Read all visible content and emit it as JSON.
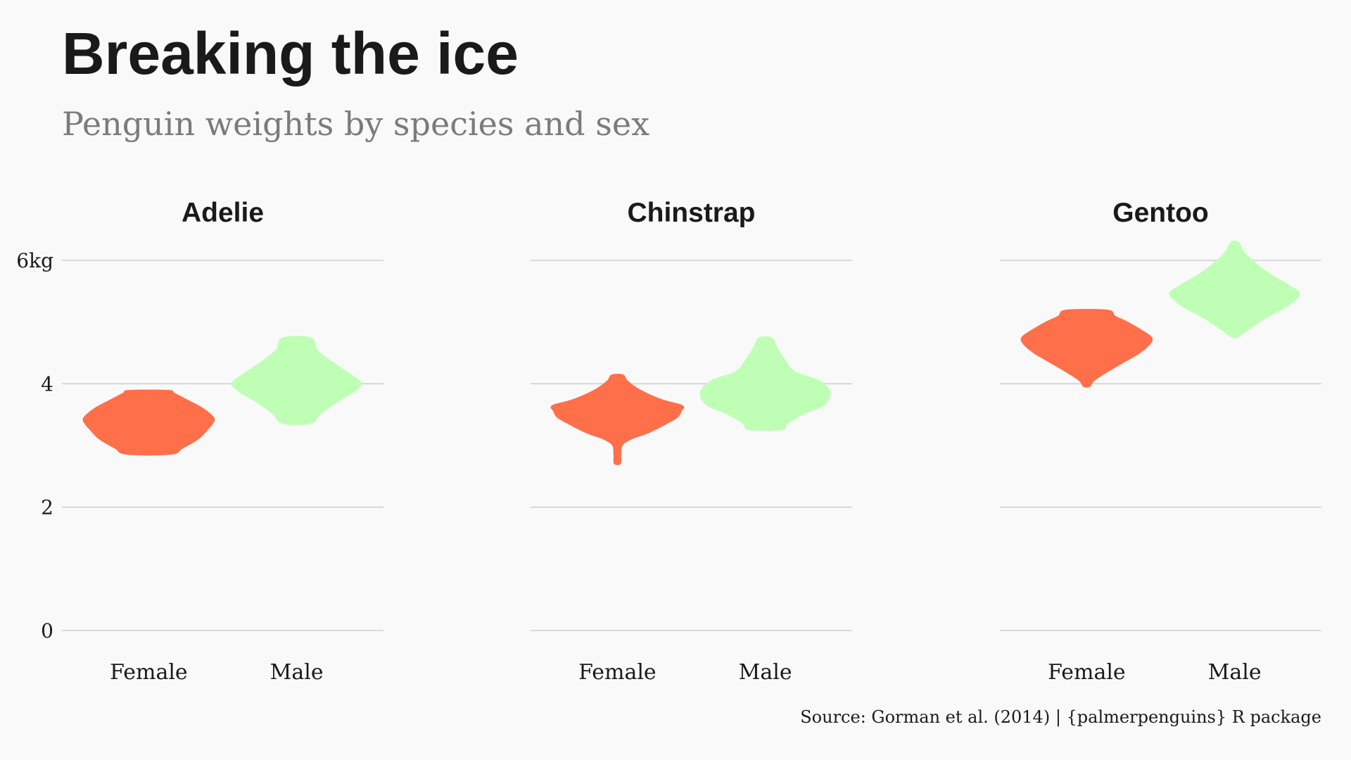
{
  "title": "Breaking the ice",
  "subtitle": "Penguin weights by species and sex",
  "caption": "Source: Gorman et al. (2014) | {palmerpenguins} R package",
  "colors": {
    "Female": "#ff6f4a",
    "Male": "#bfffb5",
    "grid": "#cfcfcf",
    "background": "#f9f9f9"
  },
  "chart_data": {
    "type": "violin",
    "title": "Breaking the ice",
    "subtitle": "Penguin weights by species and sex",
    "xlabel": "",
    "ylabel": "",
    "y_unit": "kg",
    "ylim": [
      0,
      6
    ],
    "y_ticks": [
      0,
      2,
      4,
      6
    ],
    "y_tick_labels": [
      "0",
      "2",
      "4",
      "6kg"
    ],
    "grid": true,
    "legend": "none",
    "categories": [
      "Female",
      "Male"
    ],
    "facets": [
      {
        "name": "Adelie",
        "violins": [
          {
            "sex": "Female",
            "color": "#ff6f4a",
            "profile": [
              [
                2.85,
                0.34
              ],
              [
                2.95,
                0.52
              ],
              [
                3.1,
                0.76
              ],
              [
                3.25,
                0.9
              ],
              [
                3.35,
                0.98
              ],
              [
                3.45,
                1.0
              ],
              [
                3.6,
                0.84
              ],
              [
                3.75,
                0.58
              ],
              [
                3.85,
                0.4
              ],
              [
                3.9,
                0.3
              ]
            ]
          },
          {
            "sex": "Male",
            "color": "#bfffb5",
            "profile": [
              [
                3.35,
                0.22
              ],
              [
                3.5,
                0.36
              ],
              [
                3.7,
                0.62
              ],
              [
                3.85,
                0.86
              ],
              [
                4.0,
                1.0
              ],
              [
                4.15,
                0.84
              ],
              [
                4.35,
                0.56
              ],
              [
                4.55,
                0.32
              ],
              [
                4.75,
                0.22
              ]
            ]
          }
        ]
      },
      {
        "name": "Chinstrap",
        "violins": [
          {
            "sex": "Female",
            "color": "#ff6f4a",
            "profile": [
              [
                2.7,
                0.05
              ],
              [
                2.85,
                0.06
              ],
              [
                3.0,
                0.08
              ],
              [
                3.1,
                0.22
              ],
              [
                3.2,
                0.48
              ],
              [
                3.35,
                0.76
              ],
              [
                3.45,
                0.92
              ],
              [
                3.55,
                0.98
              ],
              [
                3.65,
                1.0
              ],
              [
                3.75,
                0.68
              ],
              [
                3.9,
                0.36
              ],
              [
                4.05,
                0.16
              ],
              [
                4.15,
                0.09
              ]
            ]
          },
          {
            "sex": "Male",
            "color": "#bfffb5",
            "profile": [
              [
                3.25,
                0.26
              ],
              [
                3.35,
                0.34
              ],
              [
                3.5,
                0.58
              ],
              [
                3.65,
                0.9
              ],
              [
                3.85,
                1.0
              ],
              [
                4.05,
                0.84
              ],
              [
                4.2,
                0.46
              ],
              [
                4.4,
                0.3
              ],
              [
                4.6,
                0.18
              ],
              [
                4.75,
                0.1
              ]
            ]
          }
        ]
      },
      {
        "name": "Gentoo",
        "violins": [
          {
            "sex": "Female",
            "color": "#ff6f4a",
            "profile": [
              [
                3.95,
                0.05
              ],
              [
                4.05,
                0.12
              ],
              [
                4.2,
                0.34
              ],
              [
                4.35,
                0.58
              ],
              [
                4.5,
                0.82
              ],
              [
                4.65,
                0.98
              ],
              [
                4.75,
                1.0
              ],
              [
                4.85,
                0.88
              ],
              [
                5.0,
                0.64
              ],
              [
                5.1,
                0.44
              ],
              [
                5.2,
                0.32
              ]
            ]
          },
          {
            "sex": "Male",
            "color": "#bfffb5",
            "profile": [
              [
                4.75,
                0.05
              ],
              [
                4.85,
                0.18
              ],
              [
                5.05,
                0.46
              ],
              [
                5.25,
                0.8
              ],
              [
                5.45,
                1.0
              ],
              [
                5.6,
                0.84
              ],
              [
                5.8,
                0.52
              ],
              [
                6.0,
                0.28
              ],
              [
                6.15,
                0.14
              ],
              [
                6.3,
                0.06
              ]
            ]
          }
        ]
      }
    ]
  }
}
